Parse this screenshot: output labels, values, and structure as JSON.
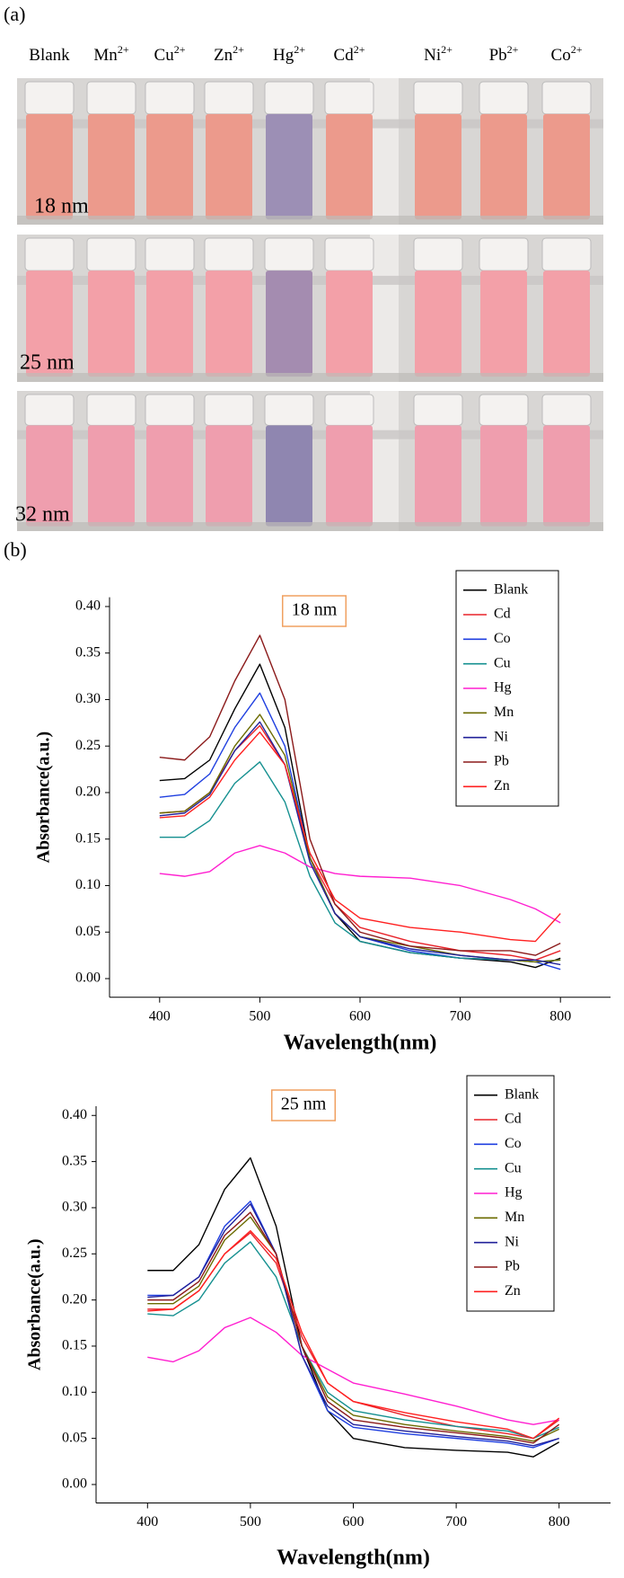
{
  "panel_a": {
    "label": "(a)",
    "ions": [
      {
        "name": "Blank"
      },
      {
        "name": "Mn",
        "charge": "2+"
      },
      {
        "name": "Cu",
        "charge": "2+"
      },
      {
        "name": "Zn",
        "charge": "2+"
      },
      {
        "name": "Hg",
        "charge": "2+"
      },
      {
        "name": "Cd",
        "charge": "2+"
      },
      {
        "name": "Ni",
        "charge": "2+"
      },
      {
        "name": "Pb",
        "charge": "2+"
      },
      {
        "name": "Co",
        "charge": "2+"
      }
    ],
    "sizes": [
      "18 nm",
      "25 nm",
      "32 nm"
    ]
  },
  "panel_b_label": "(b)",
  "chart_data": [
    {
      "type": "line",
      "title": "18 nm",
      "x_label": "Wavelength(nm)",
      "y_label": "Absorbance(a.u.)",
      "x": [
        400,
        425,
        450,
        475,
        500,
        525,
        550,
        575,
        600,
        650,
        700,
        750,
        775,
        800
      ],
      "xlim": [
        350,
        850
      ],
      "xticks": [
        400,
        500,
        600,
        700,
        800
      ],
      "ylim": [
        -0.02,
        0.41
      ],
      "yticks": [
        {
          "value": 0,
          "label": "0.00"
        },
        {
          "value": 0.05,
          "label": "0.05"
        },
        {
          "value": 0.1,
          "label": "0.10"
        },
        {
          "value": 0.15,
          "label": "0.15"
        },
        {
          "value": 0.2,
          "label": "0.20"
        },
        {
          "value": 0.25,
          "label": "0.25"
        },
        {
          "value": 0.3,
          "label": "0.30"
        },
        {
          "value": 0.35,
          "label": "0.35"
        },
        {
          "value": 0.4,
          "label": "0.40"
        }
      ],
      "legend": "upper right",
      "series": [
        {
          "name": "Blank",
          "color": "#000000",
          "values": [
            0.213,
            0.215,
            0.235,
            0.29,
            0.338,
            0.27,
            0.13,
            0.07,
            0.04,
            0.028,
            0.022,
            0.018,
            0.012,
            0.022
          ]
        },
        {
          "name": "Cd",
          "color": "#e8232a",
          "values": [
            0.178,
            0.18,
            0.2,
            0.245,
            0.272,
            0.23,
            0.13,
            0.08,
            0.055,
            0.04,
            0.03,
            0.025,
            0.02,
            0.03
          ]
        },
        {
          "name": "Co",
          "color": "#1f3fe0",
          "values": [
            0.195,
            0.198,
            0.22,
            0.27,
            0.307,
            0.25,
            0.13,
            0.07,
            0.045,
            0.03,
            0.022,
            0.02,
            0.018,
            0.01
          ]
        },
        {
          "name": "Cu",
          "color": "#159090",
          "values": [
            0.152,
            0.152,
            0.17,
            0.21,
            0.233,
            0.19,
            0.11,
            0.06,
            0.04,
            0.028,
            0.022,
            0.02,
            0.018,
            0.02
          ]
        },
        {
          "name": "Hg",
          "color": "#ff1fd0",
          "values": [
            0.113,
            0.11,
            0.115,
            0.135,
            0.143,
            0.135,
            0.12,
            0.113,
            0.11,
            0.108,
            0.1,
            0.085,
            0.075,
            0.06
          ]
        },
        {
          "name": "Mn",
          "color": "#6b6b00",
          "values": [
            0.178,
            0.18,
            0.2,
            0.25,
            0.284,
            0.24,
            0.13,
            0.07,
            0.045,
            0.035,
            0.025,
            0.02,
            0.018,
            0.02
          ]
        },
        {
          "name": "Ni",
          "color": "#22229a",
          "values": [
            0.175,
            0.178,
            0.198,
            0.245,
            0.276,
            0.23,
            0.125,
            0.07,
            0.045,
            0.032,
            0.025,
            0.02,
            0.02,
            0.015
          ]
        },
        {
          "name": "Pb",
          "color": "#8b1a1a",
          "values": [
            0.238,
            0.235,
            0.26,
            0.32,
            0.369,
            0.3,
            0.15,
            0.08,
            0.05,
            0.035,
            0.03,
            0.03,
            0.025,
            0.038
          ]
        },
        {
          "name": "Zn",
          "color": "#ff2020",
          "values": [
            0.173,
            0.175,
            0.195,
            0.235,
            0.265,
            0.23,
            0.135,
            0.085,
            0.065,
            0.055,
            0.05,
            0.042,
            0.04,
            0.07
          ]
        }
      ]
    },
    {
      "type": "line",
      "title": "25 nm",
      "x_label": "Wavelength(nm)",
      "y_label": "Absorbance(a.u.)",
      "x": [
        400,
        425,
        450,
        475,
        500,
        525,
        550,
        575,
        600,
        650,
        700,
        750,
        775,
        800
      ],
      "xlim": [
        350,
        850
      ],
      "xticks": [
        400,
        500,
        600,
        700,
        800
      ],
      "ylim": [
        -0.02,
        0.41
      ],
      "yticks": [
        {
          "value": 0,
          "label": "0.00"
        },
        {
          "value": 0.05,
          "label": "0.05"
        },
        {
          "value": 0.1,
          "label": "0.10"
        },
        {
          "value": 0.15,
          "label": "0.15"
        },
        {
          "value": 0.2,
          "label": "0.20"
        },
        {
          "value": 0.25,
          "label": "0.25"
        },
        {
          "value": 0.3,
          "label": "0.30"
        },
        {
          "value": 0.35,
          "label": "0.35"
        },
        {
          "value": 0.4,
          "label": "0.40"
        }
      ],
      "legend": "upper right",
      "series": [
        {
          "name": "Blank",
          "color": "#000000",
          "values": [
            0.232,
            0.232,
            0.26,
            0.32,
            0.354,
            0.28,
            0.15,
            0.08,
            0.05,
            0.04,
            0.037,
            0.035,
            0.03,
            0.046
          ]
        },
        {
          "name": "Cd",
          "color": "#e8232a",
          "values": [
            0.19,
            0.19,
            0.21,
            0.25,
            0.273,
            0.24,
            0.16,
            0.11,
            0.09,
            0.075,
            0.063,
            0.055,
            0.05,
            0.07
          ]
        },
        {
          "name": "Co",
          "color": "#1f3fe0",
          "values": [
            0.205,
            0.205,
            0.225,
            0.28,
            0.307,
            0.25,
            0.14,
            0.08,
            0.062,
            0.055,
            0.05,
            0.045,
            0.04,
            0.05
          ]
        },
        {
          "name": "Cu",
          "color": "#159090",
          "values": [
            0.185,
            0.183,
            0.2,
            0.24,
            0.263,
            0.225,
            0.15,
            0.1,
            0.08,
            0.07,
            0.063,
            0.058,
            0.05,
            0.062
          ]
        },
        {
          "name": "Hg",
          "color": "#ff1fd0",
          "values": [
            0.138,
            0.133,
            0.145,
            0.17,
            0.181,
            0.165,
            0.14,
            0.125,
            0.11,
            0.098,
            0.085,
            0.07,
            0.065,
            0.07
          ]
        },
        {
          "name": "Mn",
          "color": "#6b6b00",
          "values": [
            0.196,
            0.196,
            0.215,
            0.265,
            0.29,
            0.25,
            0.15,
            0.095,
            0.075,
            0.065,
            0.058,
            0.052,
            0.047,
            0.06
          ]
        },
        {
          "name": "Ni",
          "color": "#22229a",
          "values": [
            0.203,
            0.205,
            0.225,
            0.275,
            0.304,
            0.25,
            0.14,
            0.085,
            0.065,
            0.058,
            0.052,
            0.047,
            0.042,
            0.05
          ]
        },
        {
          "name": "Pb",
          "color": "#8b1a1a",
          "values": [
            0.2,
            0.2,
            0.22,
            0.27,
            0.295,
            0.25,
            0.15,
            0.09,
            0.07,
            0.062,
            0.056,
            0.05,
            0.045,
            0.065
          ]
        },
        {
          "name": "Zn",
          "color": "#ff2020",
          "values": [
            0.188,
            0.19,
            0.21,
            0.25,
            0.275,
            0.245,
            0.165,
            0.11,
            0.09,
            0.078,
            0.068,
            0.06,
            0.05,
            0.072
          ]
        }
      ]
    }
  ]
}
